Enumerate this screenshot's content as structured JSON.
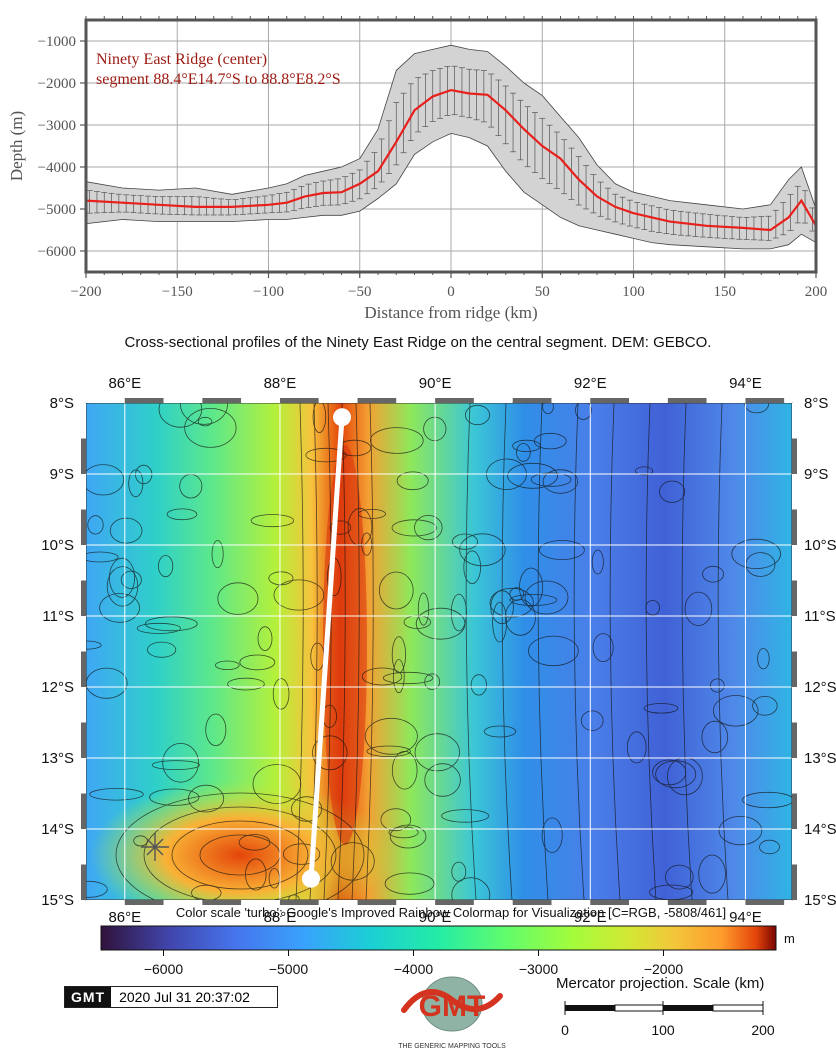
{
  "chart_data": [
    {
      "type": "line",
      "title": "Ninety East Ridge (center)",
      "subtitle": "segment 88.4°E14.7°S to 88.8°E8.2°S",
      "xlabel": "Distance from ridge (km)",
      "ylabel": "Depth (m)",
      "xlim": [
        -200,
        200
      ],
      "ylim": [
        -6500,
        -500
      ],
      "xticks": [
        -200,
        -150,
        -100,
        -50,
        0,
        50,
        100,
        150,
        200
      ],
      "yticks": [
        -1000,
        -2000,
        -3000,
        -4000,
        -5000,
        -6000
      ],
      "grid": true,
      "x": [
        -200,
        -180,
        -160,
        -140,
        -120,
        -100,
        -90,
        -80,
        -70,
        -60,
        -50,
        -40,
        -30,
        -20,
        -10,
        0,
        10,
        20,
        30,
        40,
        50,
        60,
        70,
        80,
        90,
        100,
        110,
        120,
        140,
        160,
        175,
        185,
        192,
        200
      ],
      "mean": [
        -4800,
        -4850,
        -4900,
        -4950,
        -4950,
        -4900,
        -4850,
        -4700,
        -4620,
        -4600,
        -4400,
        -4100,
        -3400,
        -2650,
        -2320,
        -2170,
        -2250,
        -2280,
        -2650,
        -3100,
        -3500,
        -3800,
        -4300,
        -4700,
        -4950,
        -5100,
        -5200,
        -5300,
        -5400,
        -5450,
        -5500,
        -5200,
        -4800,
        -5400
      ],
      "upper": [
        -4350,
        -4500,
        -4550,
        -4500,
        -4650,
        -4500,
        -4400,
        -4200,
        -4100,
        -4000,
        -3800,
        -3100,
        -1700,
        -1300,
        -1200,
        -1100,
        -1200,
        -1250,
        -1600,
        -2000,
        -2300,
        -2800,
        -3300,
        -3950,
        -4400,
        -4600,
        -4700,
        -4800,
        -4900,
        -5000,
        -4900,
        -4300,
        -4000,
        -5000
      ],
      "lower": [
        -5350,
        -5250,
        -5300,
        -5300,
        -5300,
        -5250,
        -5250,
        -5200,
        -5150,
        -5150,
        -5050,
        -4750,
        -4400,
        -3700,
        -3400,
        -3200,
        -3300,
        -3500,
        -4100,
        -4600,
        -4900,
        -5200,
        -5400,
        -5500,
        -5600,
        -5700,
        -5800,
        -5850,
        -5900,
        -5950,
        -5950,
        -5850,
        -5600,
        -5800
      ]
    },
    {
      "type": "heatmap",
      "xlim": [
        85.5,
        94.6
      ],
      "ylim": [
        -15,
        -8
      ],
      "xticks": [
        "86°E",
        "88°E",
        "90°E",
        "92°E",
        "94°E"
      ],
      "yticks": [
        "8°S",
        "9°S",
        "10°S",
        "11°S",
        "12°S",
        "13°S",
        "14°S",
        "15°S"
      ],
      "profile_line": {
        "start": [
          88.4,
          -14.7
        ],
        "end": [
          88.8,
          -8.2
        ]
      },
      "colorbar": {
        "title": "Color scale 'turbo': Google's Improved Rainbow Colormap for Visualization [C=RGB, -5808/461]",
        "unit": "m",
        "range": [
          -6500,
          -1100
        ],
        "ticks": [
          -6000,
          -5000,
          -4000,
          -3000,
          -2000
        ]
      },
      "scalebar": {
        "label": "Mercator projection. Scale (km)",
        "ticks": [
          0,
          100,
          200
        ]
      }
    }
  ],
  "caption": "Cross-sectional profiles of the Ninety East Ridge on the central segment. DEM: GEBCO.",
  "stamp": {
    "logo": "GMT",
    "timestamp": "2020 Jul 31 20:37:02"
  },
  "gmt_logo": {
    "tagline": "THE GENERIC MAPPING TOOLS"
  },
  "colors": {
    "mean_line": "#e8201c",
    "band_fill": "#d3d3d3",
    "title_color": "#9b1a12"
  }
}
